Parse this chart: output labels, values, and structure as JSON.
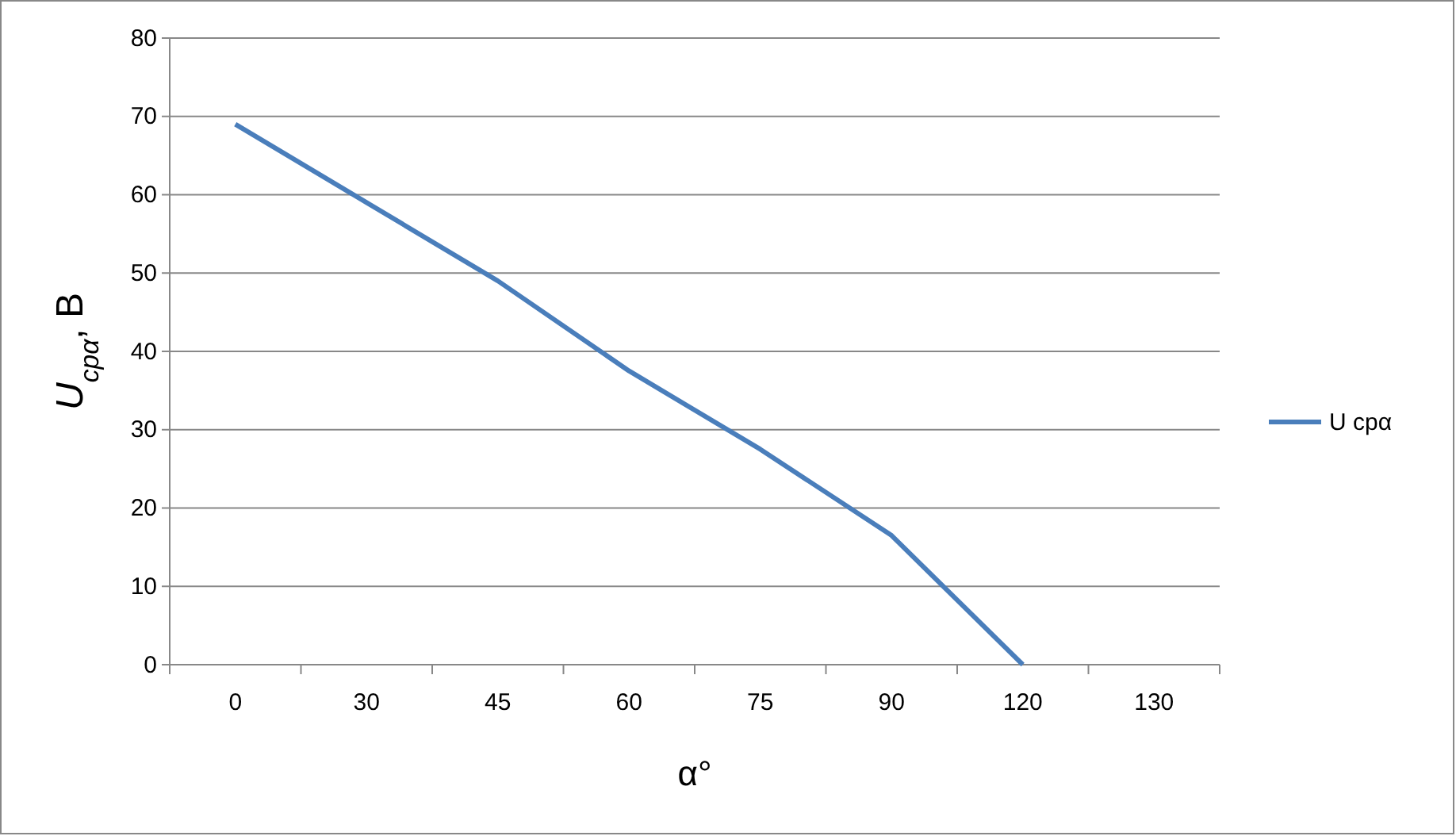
{
  "chart_data": {
    "type": "line",
    "xlabel": "α°",
    "ylabel": "U$_{cpα}$, В",
    "categories": [
      "0",
      "30",
      "45",
      "60",
      "75",
      "90",
      "120",
      "130"
    ],
    "series": [
      {
        "name": "U cpα",
        "color": "#4a7ebb",
        "values": [
          69,
          59,
          49,
          37.5,
          27.5,
          16.5,
          0,
          null
        ]
      }
    ],
    "ylim": [
      0,
      80
    ],
    "yticks": [
      0,
      10,
      20,
      30,
      40,
      50,
      60,
      70,
      80
    ],
    "grid": "y",
    "legend": "right",
    "marker": "none",
    "line_style": "solid"
  }
}
